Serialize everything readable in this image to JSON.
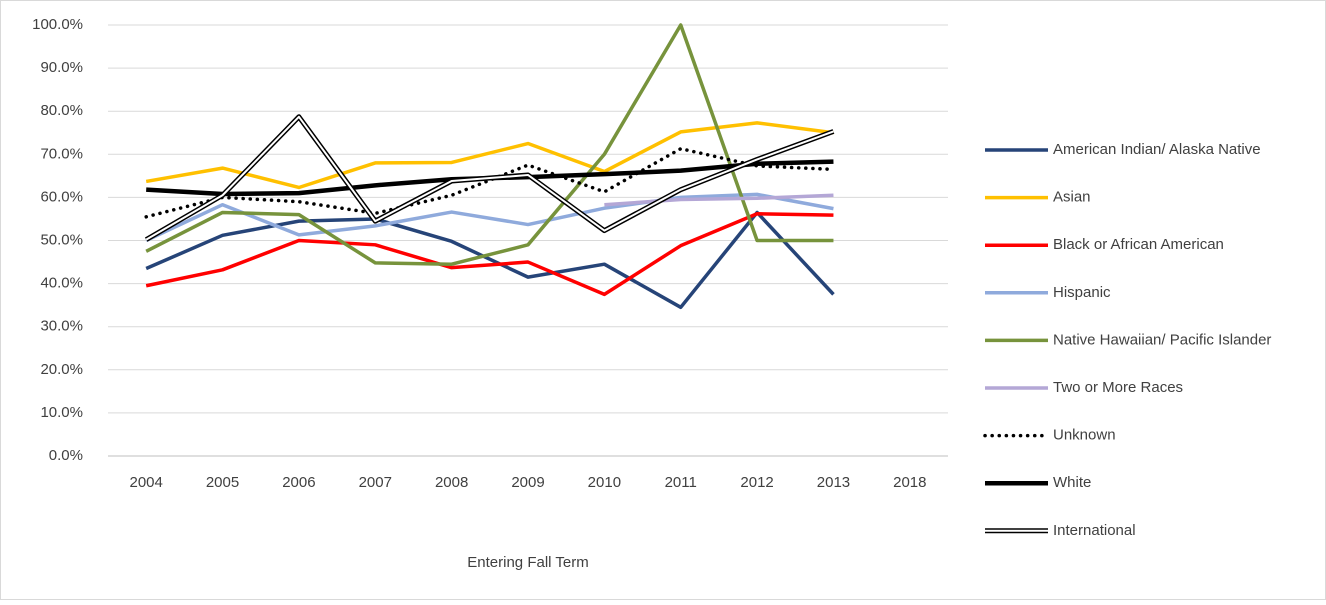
{
  "chart_data": {
    "type": "line",
    "x_label": "Entering Fall Term",
    "categories": [
      "2004",
      "2005",
      "2006",
      "2007",
      "2008",
      "2009",
      "2010",
      "2011",
      "2012",
      "2013",
      "2018"
    ],
    "ylim": [
      0,
      100
    ],
    "yticks": [
      {
        "value": 0,
        "label": "0.0%"
      },
      {
        "value": 10,
        "label": "10.0%"
      },
      {
        "value": 20,
        "label": "20.0%"
      },
      {
        "value": 30,
        "label": "30.0%"
      },
      {
        "value": 40,
        "label": "40.0%"
      },
      {
        "value": 50,
        "label": "50.0%"
      },
      {
        "value": 60,
        "label": "60.0%"
      },
      {
        "value": 70,
        "label": "70.0%"
      },
      {
        "value": 80,
        "label": "80.0%"
      },
      {
        "value": 90,
        "label": "90.0%"
      },
      {
        "value": 100,
        "label": "100.0%"
      }
    ],
    "grid": true,
    "legend": "right",
    "series": [
      {
        "name": "American Indian/ Alaska Native",
        "color": "#264478",
        "values": [
          43.5,
          51.2,
          54.5,
          55,
          49.8,
          41.5,
          44.5,
          34.5,
          56.5,
          37.5,
          null
        ]
      },
      {
        "name": "Asian",
        "color": "#ffc000",
        "values": [
          63.7,
          66.8,
          62.3,
          68,
          68.1,
          72.5,
          66,
          75.2,
          77.3,
          75,
          null
        ]
      },
      {
        "name": "Black or African American",
        "color": "#ff0000",
        "values": [
          39.5,
          43.2,
          50,
          49,
          43.7,
          45,
          37.5,
          48.8,
          56.2,
          55.9,
          null
        ]
      },
      {
        "name": "Hispanic",
        "color": "#8faadc",
        "values": [
          50,
          58.3,
          51.3,
          53.4,
          56.6,
          53.7,
          57.5,
          60,
          60.7,
          57.4,
          null
        ]
      },
      {
        "name": "Native Hawaiian/ Pacific Islander",
        "color": "#77933c",
        "values": [
          47.5,
          56.5,
          56,
          44.8,
          44.5,
          49,
          70,
          100,
          50,
          50,
          null
        ]
      },
      {
        "name": "Two or More Races",
        "color": "#b4a7d6",
        "values": [
          null,
          null,
          null,
          null,
          null,
          null,
          58.3,
          59.5,
          59.8,
          60.5,
          null
        ]
      },
      {
        "name": "Unknown",
        "color": "#000000",
        "dash": "dotted",
        "values": [
          55.5,
          60,
          59,
          56.3,
          60.5,
          67.5,
          61.3,
          71.3,
          67.3,
          66.5,
          null
        ]
      },
      {
        "name": "White",
        "color": "#000000",
        "values": [
          61.8,
          60.8,
          61,
          62.8,
          64.2,
          64.7,
          65.4,
          66.2,
          67.8,
          68.3,
          null
        ]
      },
      {
        "name": "International",
        "color": "#000000",
        "double": true,
        "values": [
          50.2,
          60.5,
          78.7,
          54.5,
          63.8,
          65.2,
          52.3,
          61.8,
          68.8,
          75.3,
          null
        ]
      }
    ]
  }
}
